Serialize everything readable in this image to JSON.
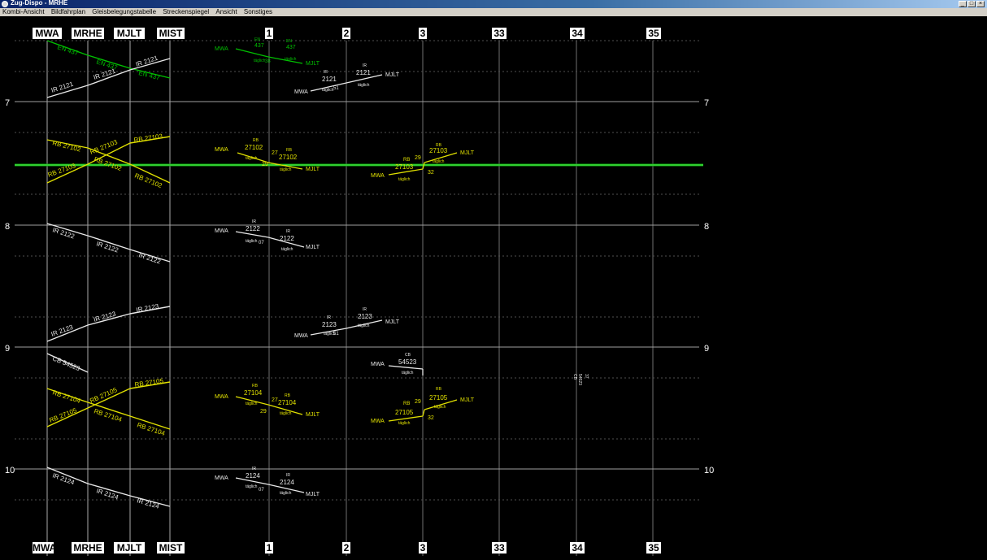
{
  "window": {
    "title": "Zug-Dispo - MRHE",
    "minimize": "_",
    "maximize": "□",
    "close": "×"
  },
  "menu": [
    "Kombi-Ansicht",
    "Bildfahrplan",
    "Gleisbelegungstabelle",
    "Streckenspiegel",
    "Ansicht",
    "Sonstiges"
  ],
  "stations_top": [
    "MWA",
    "MRHE",
    "MJLT",
    "MIST"
  ],
  "stations_bottom": [
    "MWA",
    "MRHE",
    "MJLT",
    "MIST"
  ],
  "tracks": [
    "1",
    "2",
    "3",
    "33",
    "34",
    "35"
  ],
  "hours": [
    "7",
    "8",
    "9",
    "10"
  ],
  "colors": {
    "green": "#00c000",
    "white": "#e8e8e8",
    "yellow": "#e0e000",
    "grid": "#808080"
  },
  "trains_left": [
    {
      "label": "EN 437",
      "color": "green"
    },
    {
      "label": "EN 437",
      "color": "green"
    },
    {
      "label": "EN 437",
      "color": "green"
    },
    {
      "label": "IR 2121",
      "color": "white"
    },
    {
      "label": "IR 2121",
      "color": "white"
    },
    {
      "label": "IR 2121",
      "color": "white"
    },
    {
      "label": "RB 27102",
      "color": "yellow"
    },
    {
      "label": "RB 27102",
      "color": "yellow"
    },
    {
      "label": "RB 27102",
      "color": "yellow"
    },
    {
      "label": "RB 27103",
      "color": "yellow"
    },
    {
      "label": "RB 27103",
      "color": "yellow"
    },
    {
      "label": "RB 27103",
      "color": "yellow"
    },
    {
      "label": "IR 2122",
      "color": "white"
    },
    {
      "label": "IR 2122",
      "color": "white"
    },
    {
      "label": "IR 2122",
      "color": "white"
    },
    {
      "label": "IR 2123",
      "color": "white"
    },
    {
      "label": "IR 2123",
      "color": "white"
    },
    {
      "label": "IR 2123",
      "color": "white"
    },
    {
      "label": "CB 54523",
      "color": "white"
    },
    {
      "label": "RB 27104",
      "color": "yellow"
    },
    {
      "label": "RB 27104",
      "color": "yellow"
    },
    {
      "label": "RB 27104",
      "color": "yellow"
    },
    {
      "label": "RB 27105",
      "color": "yellow"
    },
    {
      "label": "RB 27105",
      "color": "yellow"
    },
    {
      "label": "RB 27105",
      "color": "yellow"
    },
    {
      "label": "IR 2124",
      "color": "white"
    },
    {
      "label": "IR 2124",
      "color": "white"
    },
    {
      "label": "IR 2124",
      "color": "white"
    }
  ],
  "track_labels": [
    {
      "text": "MWA",
      "color": "green"
    },
    {
      "text": "EN",
      "color": "green"
    },
    {
      "text": "437",
      "color": "green"
    },
    {
      "text": "täglich",
      "color": "green"
    },
    {
      "text": "38",
      "color": "green"
    },
    {
      "text": "EN",
      "color": "green"
    },
    {
      "text": "437",
      "color": "green"
    },
    {
      "text": "täglich",
      "color": "green"
    },
    {
      "text": "MJLT",
      "color": "green"
    },
    {
      "text": "MWA",
      "color": "white"
    },
    {
      "text": "IR",
      "color": "white"
    },
    {
      "text": "2121",
      "color": "white"
    },
    {
      "text": "täglich",
      "color": "white"
    },
    {
      "text": "51",
      "color": "white"
    },
    {
      "text": "IR",
      "color": "white"
    },
    {
      "text": "2121",
      "color": "white"
    },
    {
      "text": "täglich",
      "color": "white"
    },
    {
      "text": "MJLT",
      "color": "white"
    },
    {
      "text": "MWA",
      "color": "yellow"
    },
    {
      "text": "RB",
      "color": "yellow"
    },
    {
      "text": "27102",
      "color": "yellow"
    },
    {
      "text": "täglich",
      "color": "yellow"
    },
    {
      "text": "27",
      "color": "yellow"
    },
    {
      "text": "RB",
      "color": "yellow"
    },
    {
      "text": "27102",
      "color": "yellow"
    },
    {
      "text": "täglich",
      "color": "yellow"
    },
    {
      "text": "29",
      "color": "yellow"
    },
    {
      "text": "MJLT",
      "color": "yellow"
    },
    {
      "text": "MWA",
      "color": "yellow"
    },
    {
      "text": "RB",
      "color": "yellow"
    },
    {
      "text": "29",
      "color": "yellow"
    },
    {
      "text": "27103",
      "color": "yellow"
    },
    {
      "text": "täglich",
      "color": "yellow"
    },
    {
      "text": "RB",
      "color": "yellow"
    },
    {
      "text": "27103",
      "color": "yellow"
    },
    {
      "text": "täglich",
      "color": "yellow"
    },
    {
      "text": "32",
      "color": "yellow"
    },
    {
      "text": "MJLT",
      "color": "yellow"
    },
    {
      "text": "MWA",
      "color": "white"
    },
    {
      "text": "IR",
      "color": "white"
    },
    {
      "text": "2122",
      "color": "white"
    },
    {
      "text": "täglich",
      "color": "white"
    },
    {
      "text": "07",
      "color": "white"
    },
    {
      "text": "IR",
      "color": "white"
    },
    {
      "text": "2122",
      "color": "white"
    },
    {
      "text": "täglich",
      "color": "white"
    },
    {
      "text": "MJLT",
      "color": "white"
    },
    {
      "text": "MWA",
      "color": "white"
    },
    {
      "text": "IR",
      "color": "white"
    },
    {
      "text": "2123",
      "color": "white"
    },
    {
      "text": "täglich",
      "color": "white"
    },
    {
      "text": "51",
      "color": "white"
    },
    {
      "text": "IR",
      "color": "white"
    },
    {
      "text": "2123",
      "color": "white"
    },
    {
      "text": "täglich",
      "color": "white"
    },
    {
      "text": "MJLT",
      "color": "white"
    },
    {
      "text": "MWA",
      "color": "white"
    },
    {
      "text": "CB",
      "color": "white"
    },
    {
      "text": "54523",
      "color": "white"
    },
    {
      "text": "täglich",
      "color": "white"
    },
    {
      "text": "MWA",
      "color": "yellow"
    },
    {
      "text": "RB",
      "color": "yellow"
    },
    {
      "text": "27104",
      "color": "yellow"
    },
    {
      "text": "täglich",
      "color": "yellow"
    },
    {
      "text": "27",
      "color": "yellow"
    },
    {
      "text": "RB",
      "color": "yellow"
    },
    {
      "text": "27104",
      "color": "yellow"
    },
    {
      "text": "täglich",
      "color": "yellow"
    },
    {
      "text": "29",
      "color": "yellow"
    },
    {
      "text": "MJLT",
      "color": "yellow"
    },
    {
      "text": "MWA",
      "color": "yellow"
    },
    {
      "text": "RB",
      "color": "yellow"
    },
    {
      "text": "29",
      "color": "yellow"
    },
    {
      "text": "27105",
      "color": "yellow"
    },
    {
      "text": "täglich",
      "color": "yellow"
    },
    {
      "text": "RB",
      "color": "yellow"
    },
    {
      "text": "27105",
      "color": "yellow"
    },
    {
      "text": "täglich",
      "color": "yellow"
    },
    {
      "text": "32",
      "color": "yellow"
    },
    {
      "text": "MJLT",
      "color": "yellow"
    },
    {
      "text": "MWA",
      "color": "white"
    },
    {
      "text": "IR",
      "color": "white"
    },
    {
      "text": "2124",
      "color": "white"
    },
    {
      "text": "täglich",
      "color": "white"
    },
    {
      "text": "07",
      "color": "white"
    },
    {
      "text": "IR",
      "color": "white"
    },
    {
      "text": "2124",
      "color": "white"
    },
    {
      "text": "täglich",
      "color": "white"
    },
    {
      "text": "MJLT",
      "color": "white"
    },
    {
      "text": "CB",
      "color": "white"
    },
    {
      "text": "54523",
      "color": "white"
    },
    {
      "text": "37",
      "color": "white"
    }
  ]
}
